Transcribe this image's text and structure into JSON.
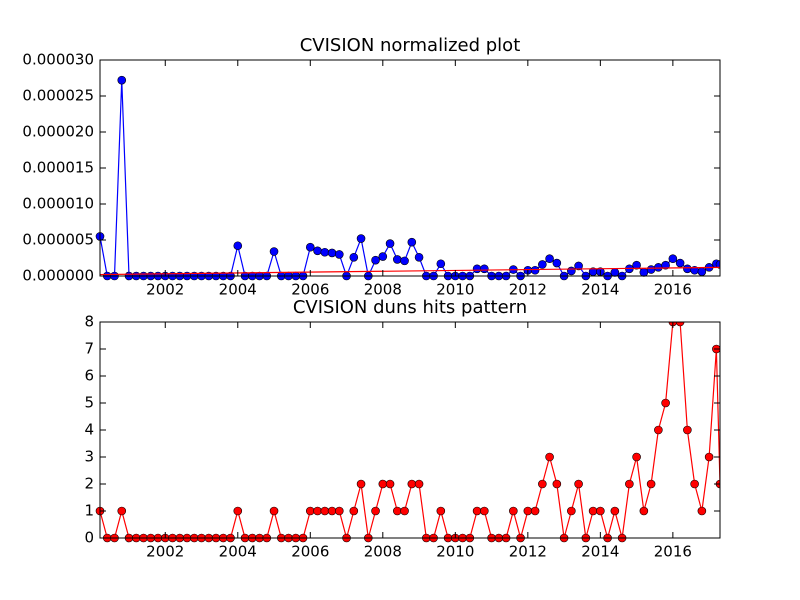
{
  "chart_data": [
    {
      "type": "line",
      "title": "CVISION normalized plot",
      "x": [
        2000.2,
        2000.4,
        2000.6,
        2000.8,
        2001.0,
        2001.2,
        2001.4,
        2001.6,
        2001.8,
        2002.0,
        2002.2,
        2002.4,
        2002.6,
        2002.8,
        2003.0,
        2003.2,
        2003.4,
        2003.6,
        2003.8,
        2004.0,
        2004.2,
        2004.4,
        2004.6,
        2004.8,
        2005.0,
        2005.2,
        2005.4,
        2005.6,
        2005.8,
        2006.0,
        2006.2,
        2006.4,
        2006.6,
        2006.8,
        2007.0,
        2007.2,
        2007.4,
        2007.6,
        2007.8,
        2008.0,
        2008.2,
        2008.4,
        2008.6,
        2008.8,
        2009.0,
        2009.2,
        2009.4,
        2009.6,
        2009.8,
        2010.0,
        2010.2,
        2010.4,
        2010.6,
        2010.8,
        2011.0,
        2011.2,
        2011.4,
        2011.6,
        2011.8,
        2012.0,
        2012.2,
        2012.4,
        2012.6,
        2012.8,
        2013.0,
        2013.2,
        2013.4,
        2013.6,
        2013.8,
        2014.0,
        2014.2,
        2014.4,
        2014.6,
        2014.8,
        2015.0,
        2015.2,
        2015.4,
        2015.6,
        2015.8,
        2016.0,
        2016.2,
        2016.4,
        2016.6,
        2016.8,
        2017.0,
        2017.2,
        2017.3
      ],
      "series": [
        {
          "color": "#0000ff",
          "values": [
            5.5e-06,
            0,
            0,
            2.72e-05,
            0,
            0,
            0,
            0,
            0,
            0,
            0,
            0,
            0,
            0,
            0,
            0,
            0,
            0,
            0,
            4.2e-06,
            0,
            0,
            0,
            0,
            3.4e-06,
            0,
            0,
            0,
            0,
            4e-06,
            3.5e-06,
            3.3e-06,
            3.2e-06,
            3e-06,
            0,
            2.6e-06,
            5.2e-06,
            0,
            2.2e-06,
            2.7e-06,
            4.5e-06,
            2.3e-06,
            2.1e-06,
            4.7e-06,
            2.6e-06,
            0,
            0,
            1.7e-06,
            0,
            0,
            0,
            0,
            1e-06,
            1e-06,
            0,
            0,
            0,
            9e-07,
            0,
            8e-07,
            8e-07,
            1.6e-06,
            2.4e-06,
            1.8e-06,
            0,
            7e-07,
            1.4e-06,
            0,
            6e-07,
            6e-07,
            0,
            5e-07,
            0,
            1e-06,
            1.5e-06,
            5e-07,
            9e-07,
            1.2e-06,
            1.5e-06,
            2.4e-06,
            1.8e-06,
            1e-06,
            8e-07,
            6e-07,
            1.2e-06,
            1.7e-06,
            1.6e-06
          ]
        }
      ],
      "trend_line": {
        "x": [
          2000.2,
          2017.3
        ],
        "values": [
          2e-07,
          1.2e-06
        ],
        "color": "#ff0000"
      },
      "xlim": [
        2000.2,
        2017.3
      ],
      "xticks": [
        2002,
        2004,
        2006,
        2008,
        2010,
        2012,
        2014,
        2016
      ],
      "ylim": [
        0,
        3e-05
      ],
      "yticks": [
        {
          "value": 0,
          "label": "0.000000"
        },
        {
          "value": 5e-06,
          "label": "0.000005"
        },
        {
          "value": 1e-05,
          "label": "0.000010"
        },
        {
          "value": 1.5e-05,
          "label": "0.000015"
        },
        {
          "value": 2e-05,
          "label": "0.000020"
        },
        {
          "value": 2.5e-05,
          "label": "0.000025"
        },
        {
          "value": 3e-05,
          "label": "0.000030"
        }
      ]
    },
    {
      "type": "line",
      "title": "CVISION duns hits pattern",
      "x": [
        2000.2,
        2000.4,
        2000.6,
        2000.8,
        2001.0,
        2001.2,
        2001.4,
        2001.6,
        2001.8,
        2002.0,
        2002.2,
        2002.4,
        2002.6,
        2002.8,
        2003.0,
        2003.2,
        2003.4,
        2003.6,
        2003.8,
        2004.0,
        2004.2,
        2004.4,
        2004.6,
        2004.8,
        2005.0,
        2005.2,
        2005.4,
        2005.6,
        2005.8,
        2006.0,
        2006.2,
        2006.4,
        2006.6,
        2006.8,
        2007.0,
        2007.2,
        2007.4,
        2007.6,
        2007.8,
        2008.0,
        2008.2,
        2008.4,
        2008.6,
        2008.8,
        2009.0,
        2009.2,
        2009.4,
        2009.6,
        2009.8,
        2010.0,
        2010.2,
        2010.4,
        2010.6,
        2010.8,
        2011.0,
        2011.2,
        2011.4,
        2011.6,
        2011.8,
        2012.0,
        2012.2,
        2012.4,
        2012.6,
        2012.8,
        2013.0,
        2013.2,
        2013.4,
        2013.6,
        2013.8,
        2014.0,
        2014.2,
        2014.4,
        2014.6,
        2014.8,
        2015.0,
        2015.2,
        2015.4,
        2015.6,
        2015.8,
        2016.0,
        2016.2,
        2016.4,
        2016.6,
        2016.8,
        2017.0,
        2017.2,
        2017.3
      ],
      "series": [
        {
          "color": "#ff0000",
          "values": [
            1,
            0,
            0,
            1,
            0,
            0,
            0,
            0,
            0,
            0,
            0,
            0,
            0,
            0,
            0,
            0,
            0,
            0,
            0,
            1,
            0,
            0,
            0,
            0,
            1,
            0,
            0,
            0,
            0,
            1,
            1,
            1,
            1,
            1,
            0,
            1,
            2,
            0,
            1,
            2,
            2,
            1,
            1,
            2,
            2,
            0,
            0,
            1,
            0,
            0,
            0,
            0,
            1,
            1,
            0,
            0,
            0,
            1,
            0,
            1,
            1,
            2,
            3,
            2,
            0,
            1,
            2,
            0,
            1,
            1,
            0,
            1,
            0,
            2,
            3,
            1,
            2,
            4,
            5,
            8,
            8,
            4,
            2,
            1,
            3,
            7,
            2
          ]
        }
      ],
      "xlim": [
        2000.2,
        2017.3
      ],
      "xticks": [
        2002,
        2004,
        2006,
        2008,
        2010,
        2012,
        2014,
        2016
      ],
      "ylim": [
        0,
        8
      ],
      "yticks": [
        0,
        1,
        2,
        3,
        4,
        5,
        6,
        7,
        8
      ]
    }
  ]
}
